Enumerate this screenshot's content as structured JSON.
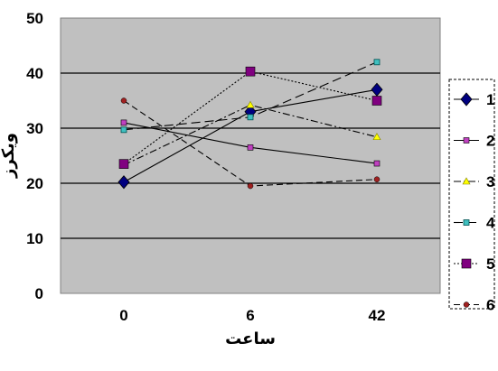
{
  "chart_data": {
    "type": "line",
    "categories": [
      "0",
      "6",
      "42"
    ],
    "xlabel": "ساعت",
    "ylabel": "ویکرز",
    "ylim": [
      0,
      50
    ],
    "yticks": [
      0,
      10,
      20,
      30,
      40,
      50
    ],
    "grid": true,
    "legend_position": "right",
    "plot_background": "#c0c0c0",
    "series": [
      {
        "name": "1",
        "values": [
          20.2,
          33,
          37
        ],
        "color": "#000080",
        "dash": "solid",
        "marker": "diamond"
      },
      {
        "name": "2",
        "values": [
          31,
          26.5,
          23.6
        ],
        "color": "#c040c0",
        "dash": "solid",
        "marker": "square"
      },
      {
        "name": "3",
        "values": [
          23.3,
          34.2,
          28.4
        ],
        "color": "#ffff00",
        "dash": "dashdot",
        "marker": "triangle"
      },
      {
        "name": "4",
        "values": [
          29.7,
          32,
          42
        ],
        "color": "#40c0c0",
        "dash": "longdash",
        "marker": "x-square"
      },
      {
        "name": "5",
        "values": [
          23.5,
          40.3,
          35
        ],
        "color": "#800080",
        "dash": "dotted",
        "marker": "square"
      },
      {
        "name": "6",
        "values": [
          35,
          19.5,
          20.7
        ],
        "color": "#a02020",
        "dash": "dash",
        "marker": "circle"
      }
    ]
  }
}
